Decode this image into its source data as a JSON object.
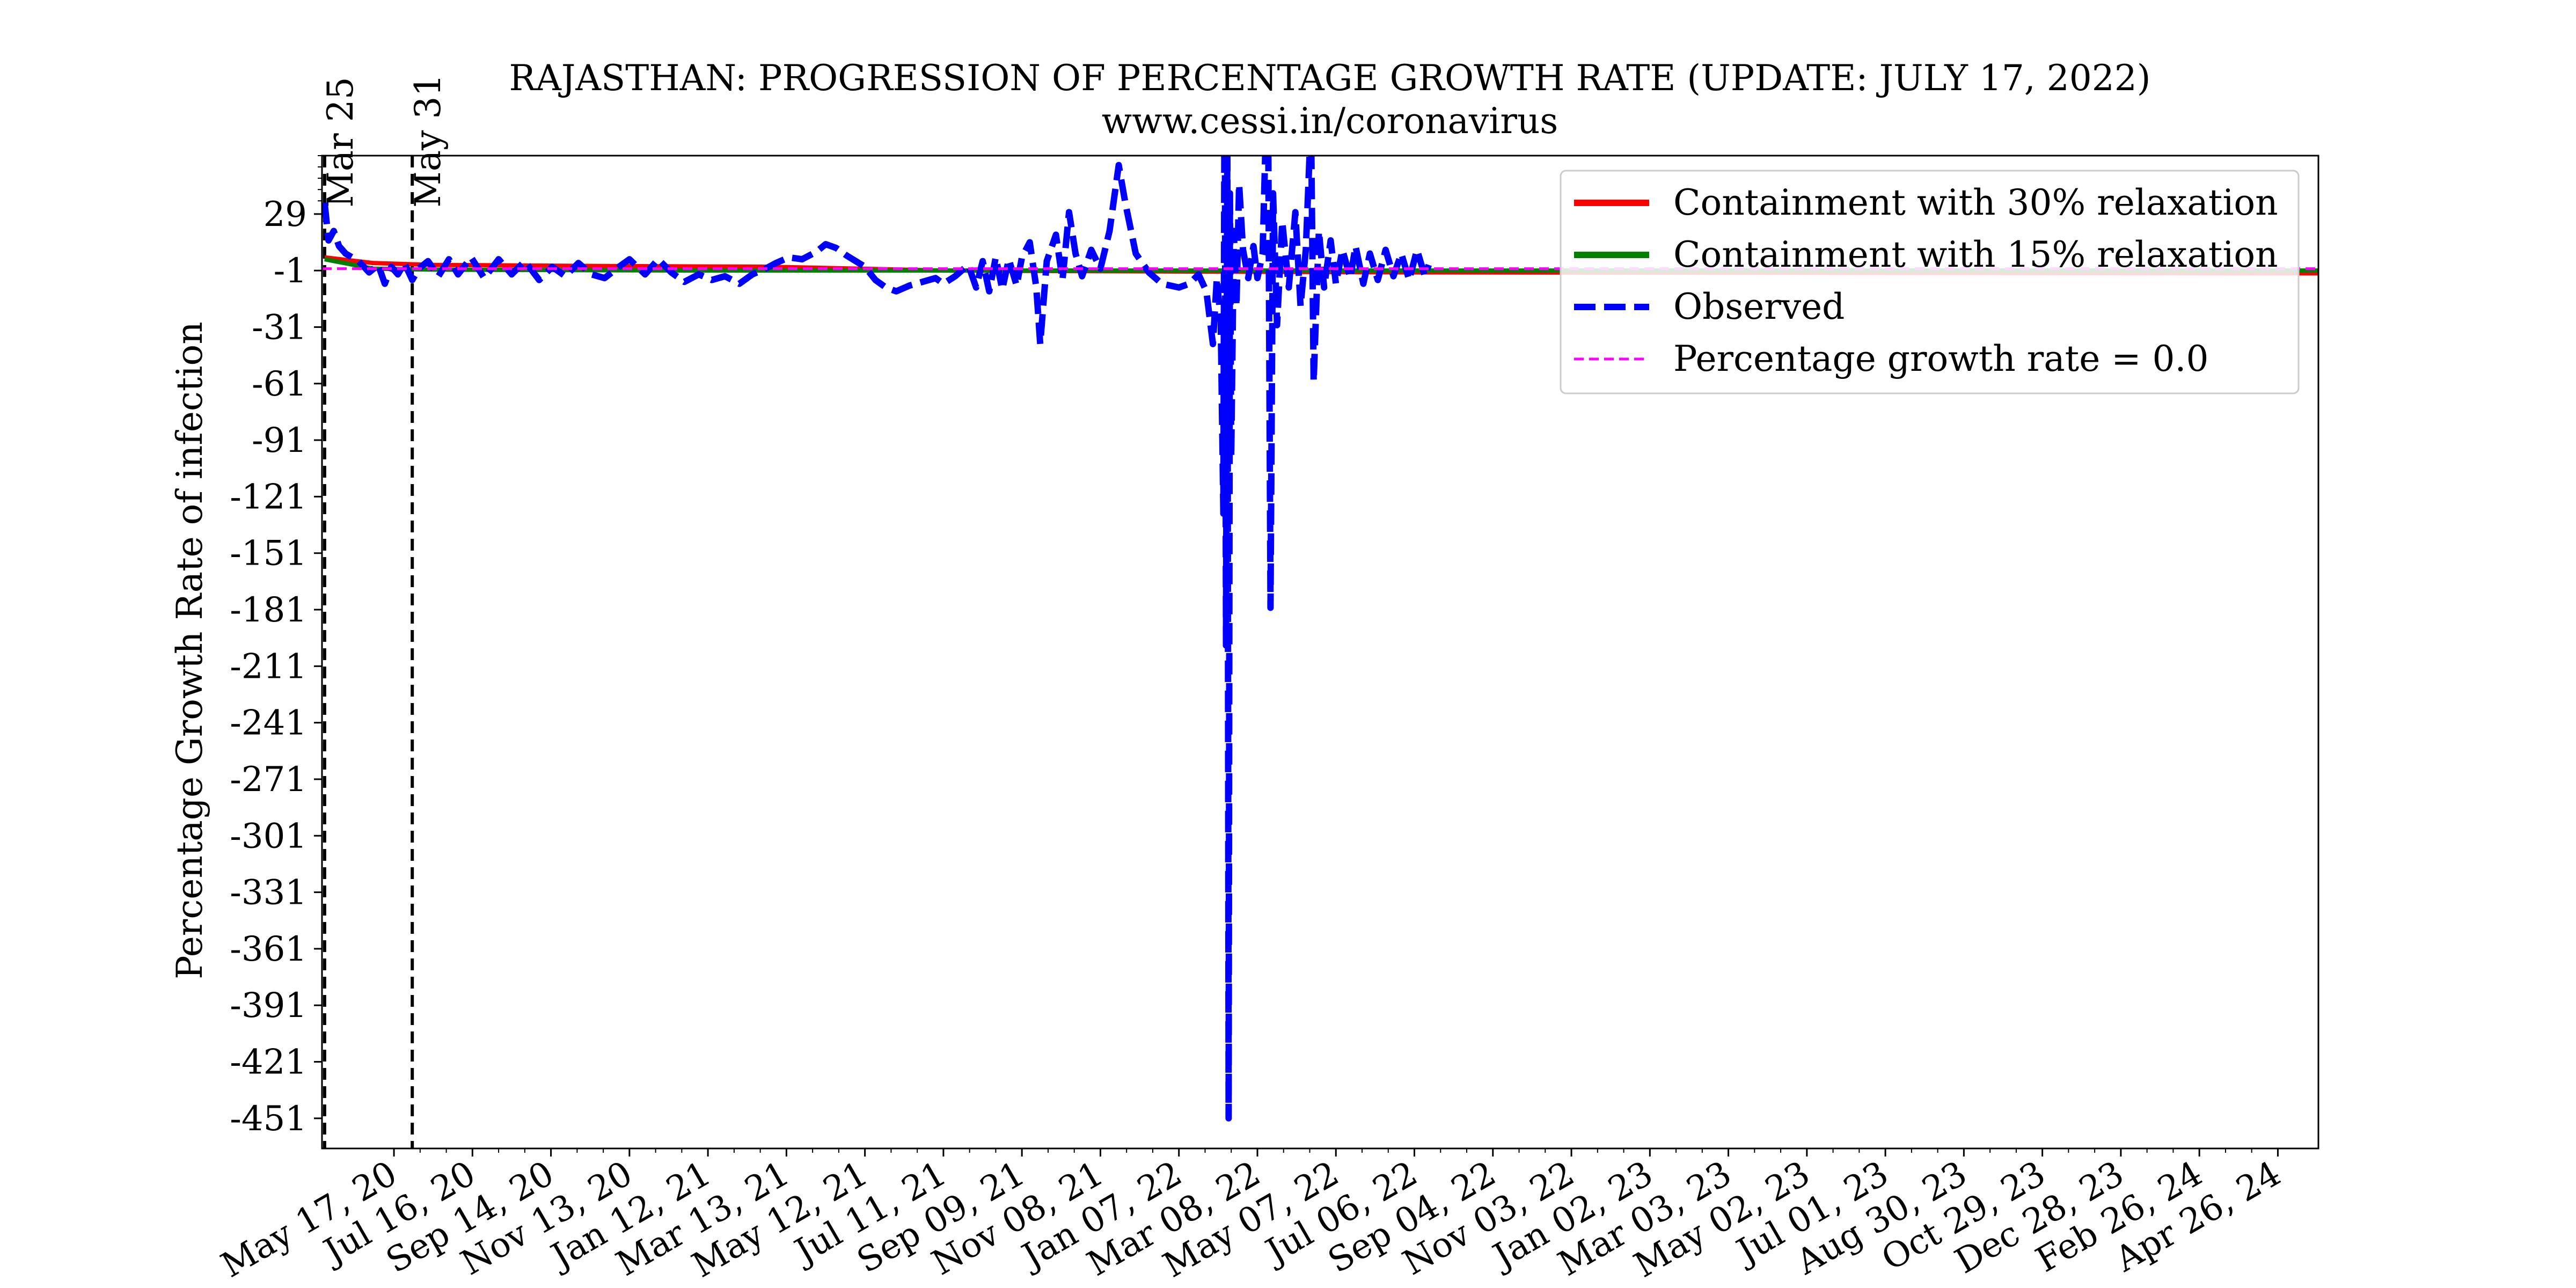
{
  "chart_data": {
    "type": "line",
    "title": "RAJASTHAN: PROGRESSION OF PERCENTAGE GROWTH RATE (UPDATE: JULY 17, 2022)",
    "subtitle": "www.cessi.in/coronavirus",
    "ylabel": "Percentage Growth Rate of infection",
    "xlabel": "",
    "x_axis_type": "date",
    "xlim": [
      "2020-03-23",
      "2024-05-27"
    ],
    "ylim": [
      -467,
      60
    ],
    "grid": false,
    "legend_position": "top-right",
    "y_ticks": [
      29,
      -1,
      -31,
      -61,
      -91,
      -121,
      -151,
      -181,
      -211,
      -241,
      -271,
      -301,
      -331,
      -361,
      -391,
      -421,
      -451
    ],
    "y_tick_labels": [
      "29",
      "-1",
      "-31",
      "-61",
      "-91",
      "-121",
      "-151",
      "-181",
      "-211",
      "-241",
      "-271",
      "-301",
      "-331",
      "-361",
      "-391",
      "-421",
      "-451"
    ],
    "x_ticks": [
      "2020-05-17",
      "2020-07-16",
      "2020-09-14",
      "2020-11-13",
      "2021-01-12",
      "2021-03-13",
      "2021-05-12",
      "2021-07-11",
      "2021-09-09",
      "2021-11-08",
      "2022-01-07",
      "2022-03-08",
      "2022-05-07",
      "2022-07-06",
      "2022-09-04",
      "2022-11-03",
      "2023-01-02",
      "2023-03-03",
      "2023-05-02",
      "2023-07-01",
      "2023-08-30",
      "2023-10-29",
      "2023-12-28",
      "2024-02-26",
      "2024-04-26"
    ],
    "x_tick_labels": [
      "May 17, 20",
      "Jul 16, 20",
      "Sep 14, 20",
      "Nov 13, 20",
      "Jan 12, 21",
      "Mar 13, 21",
      "May 12, 21",
      "Jul 11, 21",
      "Sep 09, 21",
      "Nov 08, 21",
      "Jan 07, 22",
      "Mar 08, 22",
      "May 07, 22",
      "Jul 06, 22",
      "Sep 04, 22",
      "Nov 03, 22",
      "Jan 02, 23",
      "Mar 03, 23",
      "May 02, 23",
      "Jul 01, 23",
      "Aug 30, 23",
      "Oct 29, 23",
      "Dec 28, 23",
      "Feb 26, 24",
      "Apr 26, 24"
    ],
    "annotations": [
      {
        "label": "Mar 25",
        "x": "2020-03-25"
      },
      {
        "label": "May 31",
        "x": "2020-05-31"
      }
    ],
    "series": [
      {
        "name": "Containment with 30% relaxation",
        "color": "#ff0000",
        "style": "solid",
        "points": [
          [
            "2020-03-25",
            6
          ],
          [
            "2020-05-01",
            3
          ],
          [
            "2020-06-15",
            2
          ],
          [
            "2020-10-01",
            1.5
          ],
          [
            "2021-03-01",
            1
          ],
          [
            "2021-07-11",
            -1
          ],
          [
            "2022-01-01",
            -1.5
          ],
          [
            "2022-07-06",
            -2
          ],
          [
            "2024-05-27",
            -2.5
          ]
        ]
      },
      {
        "name": "Containment with 15% relaxation",
        "color": "#008000",
        "style": "solid",
        "points": [
          [
            "2020-03-25",
            5
          ],
          [
            "2020-05-01",
            0
          ],
          [
            "2020-06-15",
            -0.5
          ],
          [
            "2021-01-01",
            -1
          ],
          [
            "2022-01-01",
            -1
          ],
          [
            "2024-05-27",
            -1
          ]
        ]
      },
      {
        "name": "Observed",
        "color": "#0000ff",
        "style": "dashed",
        "points": [
          [
            "2020-03-25",
            35
          ],
          [
            "2020-03-28",
            15
          ],
          [
            "2020-04-01",
            20
          ],
          [
            "2020-04-05",
            12
          ],
          [
            "2020-04-10",
            8
          ],
          [
            "2020-04-15",
            6
          ],
          [
            "2020-04-20",
            4
          ],
          [
            "2020-04-28",
            -2
          ],
          [
            "2020-05-05",
            2
          ],
          [
            "2020-05-10",
            -8
          ],
          [
            "2020-05-15",
            1
          ],
          [
            "2020-05-20",
            -3
          ],
          [
            "2020-05-25",
            3
          ],
          [
            "2020-05-31",
            -6
          ],
          [
            "2020-06-05",
            0
          ],
          [
            "2020-06-12",
            4
          ],
          [
            "2020-06-20",
            -4
          ],
          [
            "2020-06-28",
            5
          ],
          [
            "2020-07-05",
            -3
          ],
          [
            "2020-07-15",
            6
          ],
          [
            "2020-07-25",
            -5
          ],
          [
            "2020-08-05",
            5
          ],
          [
            "2020-08-15",
            -3
          ],
          [
            "2020-08-25",
            4
          ],
          [
            "2020-09-05",
            -6
          ],
          [
            "2020-09-15",
            1
          ],
          [
            "2020-09-25",
            -4
          ],
          [
            "2020-10-05",
            3
          ],
          [
            "2020-10-15",
            -3
          ],
          [
            "2020-10-25",
            -5
          ],
          [
            "2020-11-05",
            1
          ],
          [
            "2020-11-13",
            5
          ],
          [
            "2020-11-25",
            -3
          ],
          [
            "2020-12-05",
            5
          ],
          [
            "2020-12-15",
            -2
          ],
          [
            "2020-12-25",
            -7
          ],
          [
            "2021-01-05",
            -3
          ],
          [
            "2021-01-15",
            -6
          ],
          [
            "2021-01-25",
            -4
          ],
          [
            "2021-02-05",
            -8
          ],
          [
            "2021-02-15",
            -3
          ],
          [
            "2021-02-25",
            0
          ],
          [
            "2021-03-05",
            3
          ],
          [
            "2021-03-15",
            6
          ],
          [
            "2021-03-25",
            5
          ],
          [
            "2021-04-05",
            9
          ],
          [
            "2021-04-12",
            13
          ],
          [
            "2021-04-20",
            11
          ],
          [
            "2021-04-28",
            7
          ],
          [
            "2021-05-05",
            4
          ],
          [
            "2021-05-12",
            1
          ],
          [
            "2021-05-20",
            -6
          ],
          [
            "2021-05-28",
            -10
          ],
          [
            "2021-06-05",
            -12
          ],
          [
            "2021-06-15",
            -9
          ],
          [
            "2021-06-25",
            -7
          ],
          [
            "2021-07-05",
            -5
          ],
          [
            "2021-07-11",
            -8
          ],
          [
            "2021-07-20",
            -4
          ],
          [
            "2021-07-30",
            2
          ],
          [
            "2021-08-05",
            -10
          ],
          [
            "2021-08-10",
            4
          ],
          [
            "2021-08-15",
            -12
          ],
          [
            "2021-08-20",
            6
          ],
          [
            "2021-08-25",
            -11
          ],
          [
            "2021-08-30",
            5
          ],
          [
            "2021-09-05",
            -9
          ],
          [
            "2021-09-09",
            6
          ],
          [
            "2021-09-15",
            14
          ],
          [
            "2021-09-20",
            -10
          ],
          [
            "2021-09-23",
            -40
          ],
          [
            "2021-09-28",
            4
          ],
          [
            "2021-10-05",
            18
          ],
          [
            "2021-10-10",
            -6
          ],
          [
            "2021-10-15",
            30
          ],
          [
            "2021-10-20",
            8
          ],
          [
            "2021-10-25",
            -4
          ],
          [
            "2021-11-01",
            10
          ],
          [
            "2021-11-08",
            0
          ],
          [
            "2021-11-15",
            20
          ],
          [
            "2021-11-22",
            55
          ],
          [
            "2021-11-27",
            35
          ],
          [
            "2021-12-05",
            8
          ],
          [
            "2021-12-15",
            -2
          ],
          [
            "2021-12-25",
            -8
          ],
          [
            "2022-01-07",
            -10
          ],
          [
            "2022-01-15",
            -8
          ],
          [
            "2022-01-22",
            -3
          ],
          [
            "2022-01-28",
            -12
          ],
          [
            "2022-02-02",
            -40
          ],
          [
            "2022-02-05",
            -5
          ],
          [
            "2022-02-08",
            -28
          ],
          [
            "2022-02-10",
            -130
          ],
          [
            "2022-02-11",
            130
          ],
          [
            "2022-02-12",
            -200
          ],
          [
            "2022-02-13",
            70
          ],
          [
            "2022-02-14",
            -451
          ],
          [
            "2022-02-15",
            40
          ],
          [
            "2022-02-16",
            -100
          ],
          [
            "2022-02-18",
            20
          ],
          [
            "2022-02-20",
            -20
          ],
          [
            "2022-02-22",
            45
          ],
          [
            "2022-02-25",
            10
          ],
          [
            "2022-03-01",
            -5
          ],
          [
            "2022-03-05",
            12
          ],
          [
            "2022-03-08",
            -5
          ],
          [
            "2022-03-12",
            8
          ],
          [
            "2022-03-16",
            115
          ],
          [
            "2022-03-18",
            -180
          ],
          [
            "2022-03-20",
            40
          ],
          [
            "2022-03-23",
            -30
          ],
          [
            "2022-03-27",
            25
          ],
          [
            "2022-04-01",
            -10
          ],
          [
            "2022-04-06",
            30
          ],
          [
            "2022-04-10",
            -20
          ],
          [
            "2022-04-14",
            10
          ],
          [
            "2022-04-18",
            80
          ],
          [
            "2022-04-20",
            -60
          ],
          [
            "2022-04-24",
            20
          ],
          [
            "2022-04-28",
            -10
          ],
          [
            "2022-05-03",
            15
          ],
          [
            "2022-05-07",
            -8
          ],
          [
            "2022-05-12",
            10
          ],
          [
            "2022-05-18",
            -5
          ],
          [
            "2022-05-22",
            12
          ],
          [
            "2022-05-28",
            -8
          ],
          [
            "2022-06-02",
            8
          ],
          [
            "2022-06-08",
            -6
          ],
          [
            "2022-06-14",
            10
          ],
          [
            "2022-06-20",
            -4
          ],
          [
            "2022-06-26",
            8
          ],
          [
            "2022-07-02",
            -6
          ],
          [
            "2022-07-08",
            10
          ],
          [
            "2022-07-14",
            -4
          ],
          [
            "2022-07-17",
            2
          ]
        ]
      },
      {
        "name": "Percentage growth rate = 0.0",
        "color": "#ff00ff",
        "style": "dashed",
        "points": [
          [
            "2020-03-23",
            0
          ],
          [
            "2024-05-27",
            0
          ]
        ]
      }
    ]
  }
}
